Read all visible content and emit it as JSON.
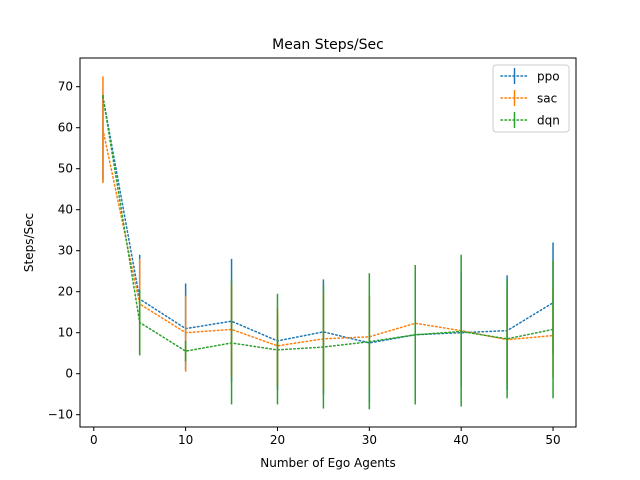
{
  "chart_data": {
    "type": "line",
    "title": "Mean Steps/Sec",
    "xlabel": "Number of Ego Agents",
    "ylabel": "Steps/Sec",
    "xlim": [
      -1.5,
      52.5
    ],
    "ylim": [
      -13,
      77
    ],
    "xticks": [
      0,
      10,
      20,
      30,
      40,
      50
    ],
    "yticks": [
      -10,
      0,
      10,
      20,
      30,
      40,
      50,
      60,
      70
    ],
    "grid": false,
    "legend_position": "top-right",
    "x": [
      1,
      5,
      10,
      15,
      20,
      25,
      30,
      35,
      40,
      45,
      50
    ],
    "series": [
      {
        "name": "ppo",
        "color": "#1f77b4",
        "linestyle": "dotted",
        "values": [
          67.5,
          18.2,
          11.0,
          12.8,
          8.0,
          10.2,
          7.5,
          9.5,
          10.0,
          10.5,
          17.3
        ],
        "err_low": [
          47,
          4.5,
          1,
          -2,
          -4,
          -5,
          -7,
          -6,
          -3,
          -4,
          5
        ],
        "err_high": [
          68,
          29,
          22,
          28,
          14,
          23,
          19,
          22,
          25,
          24,
          32
        ]
      },
      {
        "name": "sac",
        "color": "#ff7f0e",
        "linestyle": "dotted",
        "values": [
          59.5,
          17.0,
          10.0,
          10.8,
          6.8,
          8.5,
          9.0,
          12.3,
          10.5,
          8.3,
          9.3
        ],
        "err_low": [
          46.5,
          5,
          0.5,
          -1,
          -3,
          -4,
          -3,
          -2,
          -1,
          -2,
          -1
        ],
        "err_high": [
          72.5,
          28,
          19,
          22,
          16,
          20,
          19,
          23,
          22,
          20,
          21
        ]
      },
      {
        "name": "dqn",
        "color": "#2ca02c",
        "linestyle": "dotted",
        "values": [
          67.5,
          12.5,
          5.5,
          7.5,
          5.8,
          6.5,
          7.8,
          9.5,
          10.3,
          8.5,
          10.8
        ],
        "err_low": [
          67.5,
          4.5,
          3,
          -7.5,
          -7.5,
          -8.5,
          -8.7,
          -7.5,
          -8,
          -6,
          -6
        ],
        "err_high": [
          68,
          20.5,
          8,
          23,
          19.5,
          21.5,
          24.5,
          26.5,
          29,
          23,
          27.5
        ]
      }
    ]
  }
}
